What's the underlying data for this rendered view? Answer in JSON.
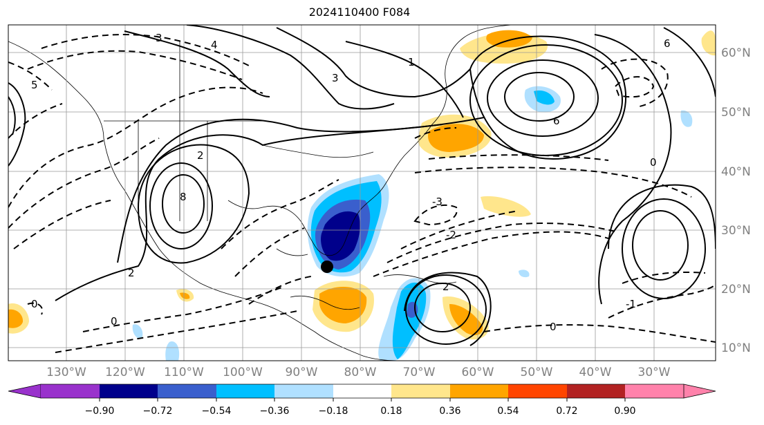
{
  "title": "2024110400 F084",
  "map": {
    "longitude_labels": [
      "130°W",
      "120°W",
      "110°W",
      "100°W",
      "90°W",
      "80°W",
      "70°W",
      "60°W",
      "50°W",
      "40°W",
      "30°W"
    ],
    "latitude_labels": [
      "60°N",
      "50°N",
      "40°N",
      "30°N",
      "20°N",
      "10°N"
    ],
    "contour_labels": [
      "4",
      "3",
      "2",
      "1",
      "0",
      "-1",
      "-2",
      "-3",
      "6",
      "8",
      "5"
    ],
    "marker": "storm-center-dot"
  },
  "colorbar": {
    "ticks": [
      "−0.90",
      "−0.72",
      "−0.54",
      "−0.36",
      "−0.18",
      "0.18",
      "0.36",
      "0.54",
      "0.72",
      "0.90"
    ],
    "colors": [
      "#9932cc",
      "#00008b",
      "#3a5fcd",
      "#00bfff",
      "#b0e0ff",
      "#ffffff",
      "#ffe68c",
      "#ffa500",
      "#ff4500",
      "#b22222",
      "#ff82ab"
    ]
  }
}
